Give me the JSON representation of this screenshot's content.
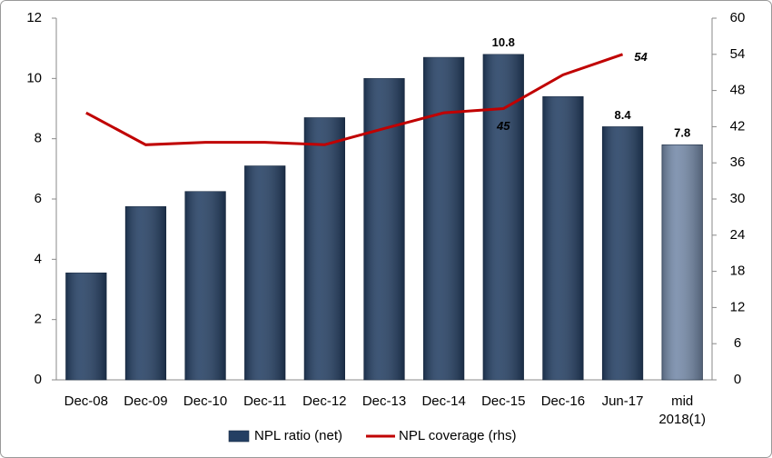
{
  "chart_data": {
    "type": "bar",
    "categories": [
      "Dec-08",
      "Dec-09",
      "Dec-10",
      "Dec-11",
      "Dec-12",
      "Dec-13",
      "Dec-14",
      "Dec-15",
      "Dec-16",
      "Jun-17",
      "mid 2018(1)"
    ],
    "series": [
      {
        "name": "NPL ratio (net)",
        "type": "bar",
        "color": "#243f63",
        "colors": [
          "#243f63",
          "#243f63",
          "#243f63",
          "#243f63",
          "#243f63",
          "#243f63",
          "#243f63",
          "#243f63",
          "#243f63",
          "#243f63",
          "#7489a8"
        ],
        "values": [
          3.55,
          5.75,
          6.25,
          7.1,
          8.7,
          10.0,
          10.7,
          10.8,
          9.4,
          8.4,
          7.8
        ],
        "value_labels": [
          null,
          null,
          null,
          null,
          null,
          null,
          null,
          "10.8",
          null,
          "8.4",
          "7.8"
        ]
      },
      {
        "name": "NPL coverage (rhs)",
        "type": "line",
        "axis": "y2",
        "color": "#c00000",
        "values": [
          44.3,
          39.0,
          39.4,
          39.4,
          39.0,
          41.7,
          44.3,
          45,
          50.6,
          54,
          null
        ],
        "value_labels": [
          null,
          null,
          null,
          null,
          null,
          null,
          null,
          "45",
          null,
          "54",
          null
        ]
      }
    ],
    "ylim": [
      0,
      12
    ],
    "yticks": [
      0,
      2,
      4,
      6,
      8,
      10,
      12
    ],
    "y2lim": [
      0,
      60
    ],
    "y2ticks": [
      0,
      6,
      12,
      18,
      24,
      30,
      36,
      42,
      48,
      54,
      60
    ],
    "grid": false,
    "legend": "bottom"
  }
}
